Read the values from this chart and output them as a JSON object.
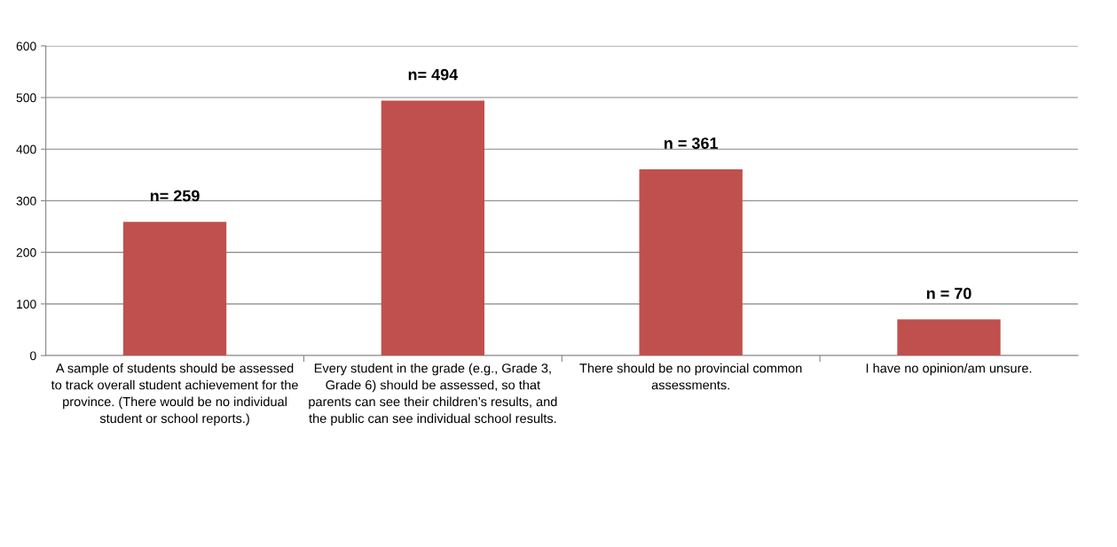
{
  "chart_data": {
    "type": "bar",
    "categories": [
      "A sample of students should be assessed to track overall student achievement for the province. (There would be no individual student or school reports.)",
      "Every student in the grade (e.g., Grade 3, Grade 6) should be assessed, so that parents can see their children’s results, and the public can see individual school results.",
      "There should be no provincial common assessments.",
      "I have no opinion/am unsure."
    ],
    "values": [
      259,
      494,
      361,
      70
    ],
    "value_labels": [
      "n= 259",
      "n= 494",
      "n = 361",
      "n = 70"
    ],
    "color": "#c0504d",
    "ylim": [
      0,
      600
    ],
    "yticks": [
      0,
      100,
      200,
      300,
      400,
      500,
      600
    ],
    "grid": "y"
  }
}
